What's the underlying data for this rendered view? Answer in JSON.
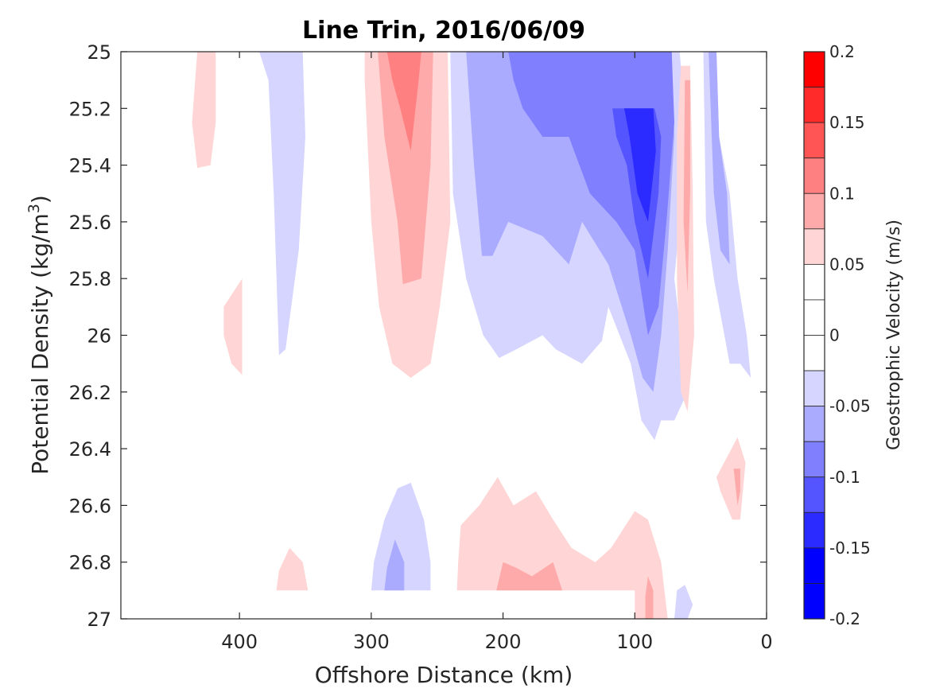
{
  "chart_data": {
    "type": "heatmap",
    "title": "Line Trin, 2016/06/09",
    "xlabel": "Offshore Distance (km)",
    "ylabel_main": "Potential Density (kg/m",
    "ylabel_sup": "3",
    "ylabel_close": ")",
    "colorbar_label": "Geostrophic Velocity (m/s)",
    "xlim": [
      490,
      0
    ],
    "ylim": [
      25,
      27
    ],
    "x_ticks": [
      400,
      300,
      200,
      100,
      0
    ],
    "x_tick_labels": [
      "400",
      "300",
      "200",
      "100",
      "0"
    ],
    "y_ticks": [
      25,
      25.2,
      25.4,
      25.6,
      25.8,
      26,
      26.2,
      26.4,
      26.6,
      26.8,
      27
    ],
    "y_tick_labels": [
      "25",
      "25.2",
      "25.4",
      "25.6",
      "25.8",
      "26",
      "26.2",
      "26.4",
      "26.6",
      "26.8",
      "27"
    ],
    "colorbar": {
      "clim": [
        -0.2,
        0.2
      ],
      "ticks": [
        0.2,
        0.15,
        0.1,
        0.05,
        0,
        -0.05,
        -0.1,
        -0.15,
        -0.2
      ],
      "tick_labels": [
        "0.2",
        "0.15",
        "0.1",
        "0.05",
        "0",
        "-0.05",
        "-0.1",
        "-0.15",
        "-0.2"
      ],
      "levels": [
        {
          "from": 0.175,
          "to": 0.2,
          "color": "#ff0000"
        },
        {
          "from": 0.15,
          "to": 0.175,
          "color": "#ff2b2b"
        },
        {
          "from": 0.125,
          "to": 0.15,
          "color": "#ff5555"
        },
        {
          "from": 0.1,
          "to": 0.125,
          "color": "#ff8080"
        },
        {
          "from": 0.075,
          "to": 0.1,
          "color": "#ffaaaa"
        },
        {
          "from": 0.05,
          "to": 0.075,
          "color": "#ffd5d5"
        },
        {
          "from": 0.025,
          "to": 0.05,
          "color": "#ffffff"
        },
        {
          "from": 0,
          "to": 0.025,
          "color": "#ffffff"
        },
        {
          "from": -0.025,
          "to": 0,
          "color": "#ffffff"
        },
        {
          "from": -0.05,
          "to": -0.025,
          "color": "#d5d5ff"
        },
        {
          "from": -0.075,
          "to": -0.05,
          "color": "#aaaaff"
        },
        {
          "from": -0.1,
          "to": -0.075,
          "color": "#8080ff"
        },
        {
          "from": -0.125,
          "to": -0.1,
          "color": "#5555ff"
        },
        {
          "from": -0.15,
          "to": -0.125,
          "color": "#2b2bff"
        },
        {
          "from": -0.175,
          "to": -0.15,
          "color": "#0000ff"
        },
        {
          "from": -0.2,
          "to": -0.175,
          "color": "#0000ff"
        }
      ]
    },
    "regions": [
      {
        "name": "pos-430km-upper",
        "level": 0.05,
        "points": [
          [
            432,
            25
          ],
          [
            418,
            25
          ],
          [
            418,
            25.25
          ],
          [
            422,
            25.4
          ],
          [
            432,
            25.41
          ],
          [
            436,
            25.25
          ]
        ]
      },
      {
        "name": "neg-370km-band",
        "level": -0.05,
        "points": [
          [
            385,
            25
          ],
          [
            352,
            25
          ],
          [
            350,
            25.3
          ],
          [
            355,
            25.7
          ],
          [
            365,
            26.05
          ],
          [
            370,
            26.07
          ],
          [
            374,
            25.5
          ],
          [
            378,
            25.1
          ]
        ]
      },
      {
        "name": "pos-400km-lens",
        "level": 0.05,
        "points": [
          [
            412,
            25.9
          ],
          [
            398,
            25.8
          ],
          [
            398,
            26.14
          ],
          [
            406,
            26.1
          ],
          [
            412,
            26.0
          ]
        ]
      },
      {
        "name": "pos-280km-band",
        "level": 0.05,
        "points": [
          [
            305,
            25
          ],
          [
            242,
            25
          ],
          [
            240,
            25.6
          ],
          [
            248,
            25.9
          ],
          [
            255,
            26.1
          ],
          [
            270,
            26.15
          ],
          [
            284,
            26.1
          ],
          [
            294,
            25.9
          ],
          [
            300,
            25.6
          ],
          [
            305,
            25.1
          ]
        ]
      },
      {
        "name": "pos-280km-mid",
        "level": 0.075,
        "points": [
          [
            295,
            25
          ],
          [
            253,
            25
          ],
          [
            255,
            25.4
          ],
          [
            262,
            25.8
          ],
          [
            276,
            25.82
          ],
          [
            280,
            25.6
          ],
          [
            290,
            25.3
          ]
        ]
      },
      {
        "name": "pos-280km-core",
        "level": 0.1,
        "points": [
          [
            288,
            25
          ],
          [
            262,
            25
          ],
          [
            264,
            25.1
          ],
          [
            270,
            25.35
          ],
          [
            278,
            25.2
          ],
          [
            284,
            25.1
          ]
        ]
      },
      {
        "name": "neg-coastal-broad",
        "level": -0.05,
        "points": [
          [
            240,
            25
          ],
          [
            66,
            25
          ],
          [
            60,
            25.3
          ],
          [
            70,
            25.8
          ],
          [
            60,
            26.2
          ],
          [
            70,
            26.3
          ],
          [
            80,
            26.3
          ],
          [
            85,
            26.37
          ],
          [
            95,
            26.3
          ],
          [
            103,
            26.1
          ],
          [
            120,
            25.9
          ],
          [
            125,
            26.02
          ],
          [
            140,
            26.1
          ],
          [
            160,
            26.05
          ],
          [
            170,
            26.0
          ],
          [
            190,
            26.05
          ],
          [
            203,
            26.08
          ],
          [
            215,
            26.0
          ],
          [
            228,
            25.8
          ],
          [
            238,
            25.5
          ]
        ]
      },
      {
        "name": "neg-coastal-mid",
        "level": -0.075,
        "points": [
          [
            228,
            25
          ],
          [
            72,
            25
          ],
          [
            70,
            25.3
          ],
          [
            75,
            25.7
          ],
          [
            80,
            26.0
          ],
          [
            86,
            26.2
          ],
          [
            94,
            26.15
          ],
          [
            103,
            26.0
          ],
          [
            120,
            25.75
          ],
          [
            140,
            25.6
          ],
          [
            150,
            25.75
          ],
          [
            170,
            25.65
          ],
          [
            196,
            25.6
          ],
          [
            208,
            25.72
          ],
          [
            216,
            25.72
          ],
          [
            222,
            25.4
          ]
        ]
      },
      {
        "name": "neg-coastal-inner",
        "level": -0.1,
        "points": [
          [
            196,
            25
          ],
          [
            72,
            25
          ],
          [
            70,
            25.25
          ],
          [
            76,
            25.6
          ],
          [
            82,
            25.9
          ],
          [
            90,
            26.0
          ],
          [
            100,
            25.7
          ],
          [
            114,
            25.6
          ],
          [
            134,
            25.5
          ],
          [
            150,
            25.3
          ],
          [
            170,
            25.3
          ],
          [
            185,
            25.2
          ],
          [
            192,
            25.1
          ]
        ]
      },
      {
        "name": "neg-coastal-core",
        "level": -0.125,
        "points": [
          [
            117,
            25.2
          ],
          [
            85,
            25.2
          ],
          [
            80,
            25.3
          ],
          [
            82,
            25.5
          ],
          [
            90,
            25.8
          ],
          [
            100,
            25.6
          ],
          [
            106,
            25.4
          ],
          [
            114,
            25.3
          ]
        ]
      },
      {
        "name": "neg-coastal-peak",
        "level": -0.15,
        "points": [
          [
            108,
            25.2
          ],
          [
            86,
            25.2
          ],
          [
            84,
            25.35
          ],
          [
            90,
            25.6
          ],
          [
            98,
            25.5
          ],
          [
            104,
            25.3
          ]
        ]
      },
      {
        "name": "neg-nearshore",
        "level": -0.05,
        "points": [
          [
            48,
            25
          ],
          [
            38,
            25
          ],
          [
            36,
            25.3
          ],
          [
            28,
            25.5
          ],
          [
            22,
            25.8
          ],
          [
            15,
            26.0
          ],
          [
            12,
            26.15
          ],
          [
            20,
            26.1
          ],
          [
            28,
            26.1
          ],
          [
            40,
            25.8
          ],
          [
            46,
            25.6
          ]
        ]
      },
      {
        "name": "neg-nearshore-mid",
        "level": -0.075,
        "points": [
          [
            44,
            25
          ],
          [
            38,
            25
          ],
          [
            36,
            25.3
          ],
          [
            30,
            25.5
          ],
          [
            28,
            25.75
          ],
          [
            35,
            25.7
          ],
          [
            40,
            25.5
          ]
        ]
      },
      {
        "name": "pos-60km-jet",
        "level": 0.05,
        "points": [
          [
            65,
            25.05
          ],
          [
            58,
            25.05
          ],
          [
            56,
            25.5
          ],
          [
            55,
            26.0
          ],
          [
            60,
            26.27
          ],
          [
            65,
            26.2
          ],
          [
            68,
            25.8
          ],
          [
            68,
            25.3
          ]
        ]
      },
      {
        "name": "pos-60km-core",
        "level": 0.075,
        "points": [
          [
            62,
            25.1
          ],
          [
            58,
            25.1
          ],
          [
            58,
            25.5
          ],
          [
            60,
            25.85
          ],
          [
            63,
            25.6
          ]
        ]
      },
      {
        "name": "pos-30km-lens",
        "level": 0.05,
        "points": [
          [
            38,
            26.5
          ],
          [
            22,
            26.36
          ],
          [
            16,
            26.45
          ],
          [
            20,
            26.65
          ],
          [
            26,
            26.65
          ],
          [
            35,
            26.55
          ]
        ]
      },
      {
        "name": "pos-30km-core",
        "level": 0.075,
        "points": [
          [
            25,
            26.47
          ],
          [
            20,
            26.47
          ],
          [
            20,
            26.55
          ],
          [
            22,
            26.6
          ]
        ]
      },
      {
        "name": "neg-280km-deep",
        "level": -0.05,
        "points": [
          [
            300,
            26.9
          ],
          [
            255,
            26.9
          ],
          [
            255,
            26.8
          ],
          [
            260,
            26.65
          ],
          [
            270,
            26.52
          ],
          [
            280,
            26.54
          ],
          [
            290,
            26.65
          ],
          [
            298,
            26.8
          ]
        ]
      },
      {
        "name": "neg-280km-deep-core",
        "level": -0.075,
        "points": [
          [
            290,
            26.9
          ],
          [
            275,
            26.9
          ],
          [
            275,
            26.8
          ],
          [
            282,
            26.72
          ],
          [
            288,
            26.82
          ]
        ]
      },
      {
        "name": "pos-360km-deep",
        "level": 0.05,
        "points": [
          [
            372,
            26.9
          ],
          [
            348,
            26.9
          ],
          [
            352,
            26.8
          ],
          [
            362,
            26.75
          ],
          [
            370,
            26.83
          ]
        ]
      },
      {
        "name": "pos-deep-broad",
        "level": 0.05,
        "points": [
          [
            235,
            26.9
          ],
          [
            100,
            26.9
          ],
          [
            100,
            27
          ],
          [
            75,
            27
          ],
          [
            80,
            26.8
          ],
          [
            90,
            26.65
          ],
          [
            100,
            26.62
          ],
          [
            118,
            26.75
          ],
          [
            130,
            26.8
          ],
          [
            148,
            26.75
          ],
          [
            162,
            26.65
          ],
          [
            175,
            26.55
          ],
          [
            192,
            26.6
          ],
          [
            204,
            26.5
          ],
          [
            218,
            26.6
          ],
          [
            232,
            26.67
          ],
          [
            234,
            26.8
          ]
        ]
      },
      {
        "name": "pos-deep-core",
        "level": 0.075,
        "points": [
          [
            205,
            26.9
          ],
          [
            155,
            26.9
          ],
          [
            162,
            26.8
          ],
          [
            178,
            26.85
          ],
          [
            190,
            26.82
          ],
          [
            200,
            26.8
          ]
        ]
      },
      {
        "name": "pos-90km-deep-core",
        "level": 0.075,
        "points": [
          [
            92,
            27
          ],
          [
            86,
            27
          ],
          [
            86,
            26.9
          ],
          [
            90,
            26.85
          ],
          [
            92,
            26.92
          ]
        ]
      },
      {
        "name": "neg-60km-deep",
        "level": -0.05,
        "points": [
          [
            70,
            27
          ],
          [
            60,
            27
          ],
          [
            56,
            26.95
          ],
          [
            62,
            26.88
          ],
          [
            68,
            26.9
          ]
        ]
      }
    ]
  }
}
